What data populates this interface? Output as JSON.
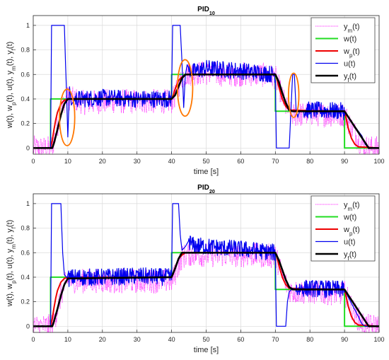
{
  "chart_data": [
    {
      "type": "line",
      "title": "PID",
      "title_sub": "10",
      "xlabel": "time [s]",
      "ylabel_parts": [
        [
          "w(t), w",
          ""
        ],
        [
          "p",
          "sub"
        ],
        [
          "(t), u(t), y",
          ""
        ],
        [
          "m",
          "sub"
        ],
        [
          "(t), y",
          ""
        ],
        [
          "f",
          "sub"
        ],
        [
          "(t)",
          ""
        ]
      ],
      "xlim": [
        0,
        100
      ],
      "ylim": [
        -0.05,
        1.08
      ],
      "xticks": [
        0,
        10,
        20,
        30,
        40,
        50,
        60,
        70,
        80,
        90,
        100
      ],
      "yticks": [
        0,
        0.2,
        0.4,
        0.6,
        0.8,
        1
      ],
      "xtick_labels": [
        "0",
        "10",
        "20",
        "30",
        "40",
        "50",
        "60",
        "70",
        "80",
        "90",
        "100"
      ],
      "ytick_labels": [
        "0",
        "0.2",
        "0.4",
        "0.6",
        "0.8",
        "1"
      ],
      "grid": true,
      "legend_position": "top-right",
      "series": [
        {
          "name": "y",
          "name_sub": "m",
          "name_tail": "(t)",
          "color": "#ff33ff",
          "style": "dotted",
          "x": [
            0,
            5,
            6,
            7,
            8,
            9,
            10,
            15,
            20,
            25,
            30,
            35,
            40,
            41,
            42,
            43,
            44,
            45,
            50,
            55,
            60,
            65,
            70,
            71,
            72,
            73,
            74,
            75,
            76,
            80,
            85,
            90,
            91,
            92,
            93,
            94,
            95,
            96,
            97,
            100
          ],
          "y": [
            0,
            0,
            0.05,
            0.18,
            0.3,
            0.38,
            0.41,
            0.37,
            0.38,
            0.38,
            0.38,
            0.38,
            0.38,
            0.43,
            0.5,
            0.57,
            0.6,
            0.61,
            0.61,
            0.6,
            0.6,
            0.6,
            0.58,
            0.5,
            0.42,
            0.34,
            0.29,
            0.27,
            0.27,
            0.28,
            0.27,
            0.27,
            0.22,
            0.17,
            0.12,
            0.07,
            0.03,
            0.01,
            0,
            0
          ],
          "noise": 0.1
        },
        {
          "name": "w(t)",
          "color": "#22dd22",
          "style": "solid",
          "x": [
            0,
            5,
            5,
            40,
            40,
            70,
            70,
            90,
            90,
            100
          ],
          "y": [
            0,
            0,
            0.4,
            0.4,
            0.6,
            0.6,
            0.3,
            0.3,
            0,
            0
          ]
        },
        {
          "name": "w",
          "name_sub": "p",
          "name_tail": "(t)",
          "color": "#ee0000",
          "style": "solid",
          "x": [
            0,
            5,
            5.5,
            6,
            6.5,
            7,
            8,
            9,
            10,
            40,
            40.5,
            41,
            42,
            43,
            44,
            70,
            70.5,
            71,
            72,
            73,
            74,
            90,
            90.5,
            91,
            92,
            93,
            94,
            100
          ],
          "y": [
            0,
            0,
            0.06,
            0.15,
            0.23,
            0.29,
            0.36,
            0.39,
            0.4,
            0.4,
            0.43,
            0.48,
            0.55,
            0.58,
            0.6,
            0.6,
            0.56,
            0.5,
            0.4,
            0.34,
            0.31,
            0.3,
            0.24,
            0.17,
            0.08,
            0.03,
            0.01,
            0
          ]
        },
        {
          "name": "u(t)",
          "color": "#0000ee",
          "style": "solid",
          "x": [
            0,
            5,
            5.3,
            9,
            9.5,
            10,
            10.5,
            11,
            12,
            14,
            20,
            30,
            40,
            40.3,
            42.5,
            43,
            43.5,
            44,
            44.5,
            45,
            46,
            50,
            60,
            70,
            70.3,
            74,
            74.5,
            75,
            75.5,
            76,
            76.5,
            77,
            80,
            90,
            90.3,
            95,
            96,
            97,
            100
          ],
          "y": [
            0,
            0,
            1,
            1,
            0.55,
            0.09,
            0.5,
            0.35,
            0.4,
            0.4,
            0.41,
            0.4,
            0.4,
            1,
            1,
            0.7,
            0.33,
            0.6,
            0.68,
            0.65,
            0.62,
            0.65,
            0.63,
            0.6,
            0,
            0,
            0.3,
            0.6,
            0.6,
            0.32,
            0.25,
            0.3,
            0.31,
            0.3,
            0.28,
            0.1,
            0.03,
            0,
            0
          ],
          "noise": 0.07,
          "noise_ranges": [
            [
              12,
              40
            ],
            [
              45,
              70
            ],
            [
              78,
              90
            ]
          ]
        },
        {
          "name": "y",
          "name_sub": "f",
          "name_tail": "(t)",
          "color": "#000000",
          "style": "solid",
          "x": [
            0,
            5.5,
            6,
            7,
            8,
            9,
            10,
            40,
            41,
            42,
            43,
            44,
            70,
            71,
            72,
            73,
            74,
            75,
            90,
            97,
            100
          ],
          "y": [
            0,
            0,
            0.04,
            0.15,
            0.27,
            0.36,
            0.4,
            0.4,
            0.43,
            0.5,
            0.57,
            0.6,
            0.6,
            0.54,
            0.45,
            0.37,
            0.31,
            0.3,
            0.3,
            0,
            0
          ]
        }
      ],
      "annotations": [
        {
          "type": "ellipse",
          "color": "#ff7700",
          "center": [
            9.8,
            0.25
          ],
          "radius": [
            2.2,
            0.23
          ]
        },
        {
          "type": "ellipse",
          "color": "#ff7700",
          "center": [
            43.9,
            0.49
          ],
          "radius": [
            2.2,
            0.23
          ]
        },
        {
          "type": "ellipse",
          "color": "#ff7700",
          "center": [
            75.3,
            0.43
          ],
          "radius": [
            1.5,
            0.18
          ]
        }
      ]
    },
    {
      "type": "line",
      "title": "PID",
      "title_sub": "20",
      "xlabel": "time [s]",
      "ylabel_parts": [
        [
          "w(t), w",
          ""
        ],
        [
          "p",
          "sub"
        ],
        [
          "(t), u(t), y",
          ""
        ],
        [
          "m",
          "sub"
        ],
        [
          "(t), y",
          ""
        ],
        [
          "f",
          "sub"
        ],
        [
          "(t)",
          ""
        ]
      ],
      "xlim": [
        0,
        100
      ],
      "ylim": [
        -0.05,
        1.08
      ],
      "xticks": [
        0,
        10,
        20,
        30,
        40,
        50,
        60,
        70,
        80,
        90,
        100
      ],
      "yticks": [
        0,
        0.2,
        0.4,
        0.6,
        0.8,
        1
      ],
      "xtick_labels": [
        "0",
        "10",
        "20",
        "30",
        "40",
        "50",
        "60",
        "70",
        "80",
        "90",
        "100"
      ],
      "ytick_labels": [
        "0",
        "0.2",
        "0.4",
        "0.6",
        "0.8",
        "1"
      ],
      "grid": true,
      "legend_position": "top-right",
      "series": [
        {
          "name": "y",
          "name_sub": "m",
          "name_tail": "(t)",
          "color": "#ff33ff",
          "style": "dotted",
          "x": [
            0,
            5,
            6,
            7,
            8,
            9,
            10,
            15,
            20,
            25,
            30,
            35,
            40,
            41,
            42,
            43,
            44,
            45,
            50,
            55,
            60,
            65,
            70,
            71,
            72,
            73,
            74,
            75,
            80,
            85,
            90,
            91,
            92,
            93,
            94,
            95,
            96,
            97,
            100
          ],
          "y": [
            0,
            0,
            0.04,
            0.14,
            0.25,
            0.33,
            0.37,
            0.37,
            0.37,
            0.37,
            0.37,
            0.37,
            0.37,
            0.42,
            0.5,
            0.56,
            0.58,
            0.59,
            0.58,
            0.58,
            0.58,
            0.58,
            0.57,
            0.5,
            0.42,
            0.35,
            0.3,
            0.28,
            0.28,
            0.27,
            0.27,
            0.22,
            0.16,
            0.1,
            0.06,
            0.03,
            0.01,
            0,
            0
          ],
          "noise": 0.1
        },
        {
          "name": "w(t)",
          "color": "#22dd22",
          "style": "solid",
          "x": [
            0,
            5,
            5,
            40,
            40,
            70,
            70,
            90,
            90,
            100
          ],
          "y": [
            0,
            0,
            0.4,
            0.4,
            0.6,
            0.6,
            0.3,
            0.3,
            0,
            0
          ]
        },
        {
          "name": "w",
          "name_sub": "p",
          "name_tail": "(t)",
          "color": "#ee0000",
          "style": "solid",
          "x": [
            0,
            5,
            5.5,
            6,
            6.5,
            7,
            8,
            9,
            10,
            40,
            40.5,
            41,
            42,
            43,
            44,
            70,
            70.5,
            71,
            72,
            73,
            74,
            90,
            90.5,
            91,
            92,
            93,
            94,
            100
          ],
          "y": [
            0,
            0,
            0.06,
            0.15,
            0.23,
            0.29,
            0.36,
            0.39,
            0.4,
            0.4,
            0.43,
            0.48,
            0.55,
            0.58,
            0.6,
            0.6,
            0.56,
            0.5,
            0.4,
            0.34,
            0.31,
            0.3,
            0.24,
            0.17,
            0.08,
            0.03,
            0.01,
            0
          ]
        },
        {
          "name": "u(t)",
          "color": "#0000ee",
          "style": "solid",
          "x": [
            0,
            5,
            5.3,
            8,
            8.5,
            9,
            10,
            12,
            20,
            30,
            40,
            40.3,
            42,
            42.5,
            43,
            44,
            45,
            46,
            50,
            60,
            70,
            70.3,
            73,
            73.5,
            74,
            75,
            76,
            78,
            90,
            90.3,
            94,
            95,
            96,
            100
          ],
          "y": [
            0,
            0,
            1,
            1,
            0.6,
            0.42,
            0.39,
            0.4,
            0.4,
            0.41,
            0.4,
            1,
            1,
            0.75,
            0.62,
            0.65,
            0.7,
            0.66,
            0.65,
            0.63,
            0.6,
            0,
            0,
            0.2,
            0.28,
            0.31,
            0.3,
            0.31,
            0.3,
            0.28,
            0.08,
            0.02,
            0,
            0
          ],
          "noise": 0.07,
          "noise_ranges": [
            [
              10,
              40
            ],
            [
              45,
              70
            ],
            [
              76,
              90
            ]
          ]
        },
        {
          "name": "y",
          "name_sub": "f",
          "name_tail": "(t)",
          "color": "#000000",
          "style": "solid",
          "x": [
            0,
            5.5,
            6,
            7,
            8,
            9,
            10,
            40,
            41,
            42,
            43,
            70,
            71,
            72,
            73,
            74,
            75,
            90,
            97,
            100
          ],
          "y": [
            0,
            0,
            0.04,
            0.14,
            0.25,
            0.34,
            0.39,
            0.4,
            0.47,
            0.55,
            0.6,
            0.6,
            0.54,
            0.46,
            0.38,
            0.32,
            0.3,
            0.3,
            0,
            0
          ]
        }
      ],
      "annotations": []
    }
  ]
}
